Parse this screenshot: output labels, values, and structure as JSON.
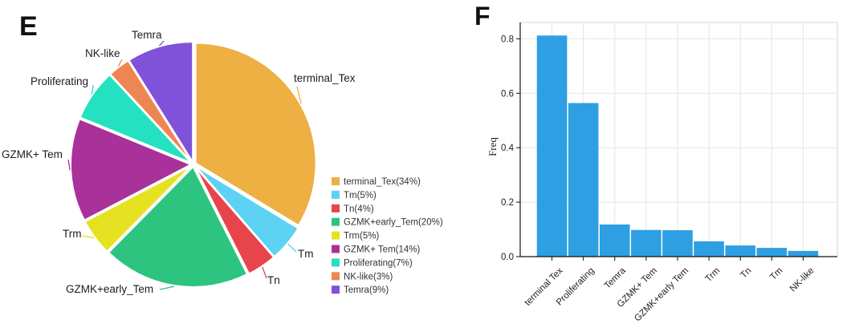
{
  "chart_data": [
    {
      "type": "pie",
      "panel_label": "E",
      "legend_position": "right",
      "slices": [
        {
          "label": "terminal_Tex",
          "legend": "terminal_Tex(34%)",
          "percent": 34,
          "color": "#EEB043"
        },
        {
          "label": "Tm",
          "legend": "Tm(5%)",
          "percent": 5,
          "color": "#5DD2F3"
        },
        {
          "label": "Tn",
          "legend": "Tn(4%)",
          "percent": 4,
          "color": "#E8444B"
        },
        {
          "label": "GZMK+early_Tem",
          "legend": "GZMK+early_Tem(20%)",
          "percent": 20,
          "color": "#2DC47F"
        },
        {
          "label": "Trm",
          "legend": "Trm(5%)",
          "percent": 5,
          "color": "#E6E221"
        },
        {
          "label": "GZMK+ Tem",
          "legend": "GZMK+ Tem(14%)",
          "percent": 14,
          "color": "#A9319A"
        },
        {
          "label": "Proliferating",
          "legend": "Proliferating(7%)",
          "percent": 7,
          "color": "#24E1C2"
        },
        {
          "label": "NK-like",
          "legend": "NK-like(3%)",
          "percent": 3,
          "color": "#EE8653"
        },
        {
          "label": "Temra",
          "legend": "Temra(9%)",
          "percent": 9,
          "color": "#8052DA"
        }
      ]
    },
    {
      "type": "bar",
      "panel_label": "F",
      "categories": [
        "terminal Tex",
        "Proliferating",
        "Temra",
        "GZMK+ Tem",
        "GZMK+early Tem",
        "Trm",
        "Tn",
        "Tm",
        "NK-like"
      ],
      "values": [
        0.812,
        0.564,
        0.118,
        0.098,
        0.097,
        0.056,
        0.041,
        0.032,
        0.021
      ],
      "ylabel": "Freq",
      "ylim": [
        0,
        0.86
      ],
      "yticks": [
        "0.0",
        "0.2",
        "0.4",
        "0.6",
        "0.8"
      ],
      "bar_color": "#2E9FE2",
      "grid": true
    }
  ]
}
